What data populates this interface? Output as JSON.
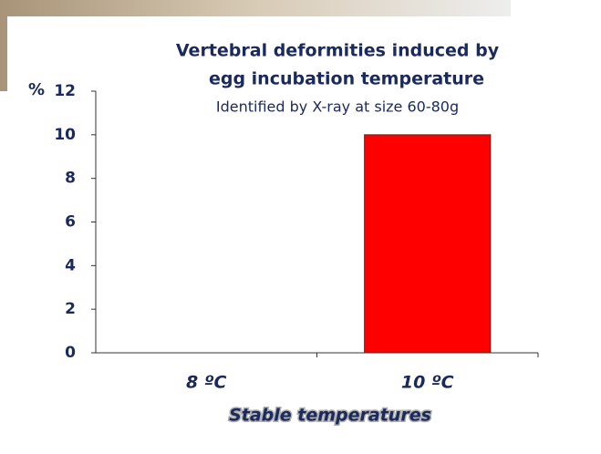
{
  "chart_data": {
    "type": "bar",
    "title": [
      "Vertebral deformities induced by",
      "egg incubation temperature"
    ],
    "subtitle": "Identified by X-ray at size 60-80g",
    "y_label": "%",
    "x_label": "Stable temperatures",
    "categories": [
      "8 ºC",
      "10 ºC"
    ],
    "values": [
      0,
      10
    ],
    "color": "#ff0000",
    "ylim": [
      0,
      12
    ],
    "yticks": [
      0,
      2,
      4,
      6,
      8,
      10,
      12
    ],
    "grid": false
  }
}
